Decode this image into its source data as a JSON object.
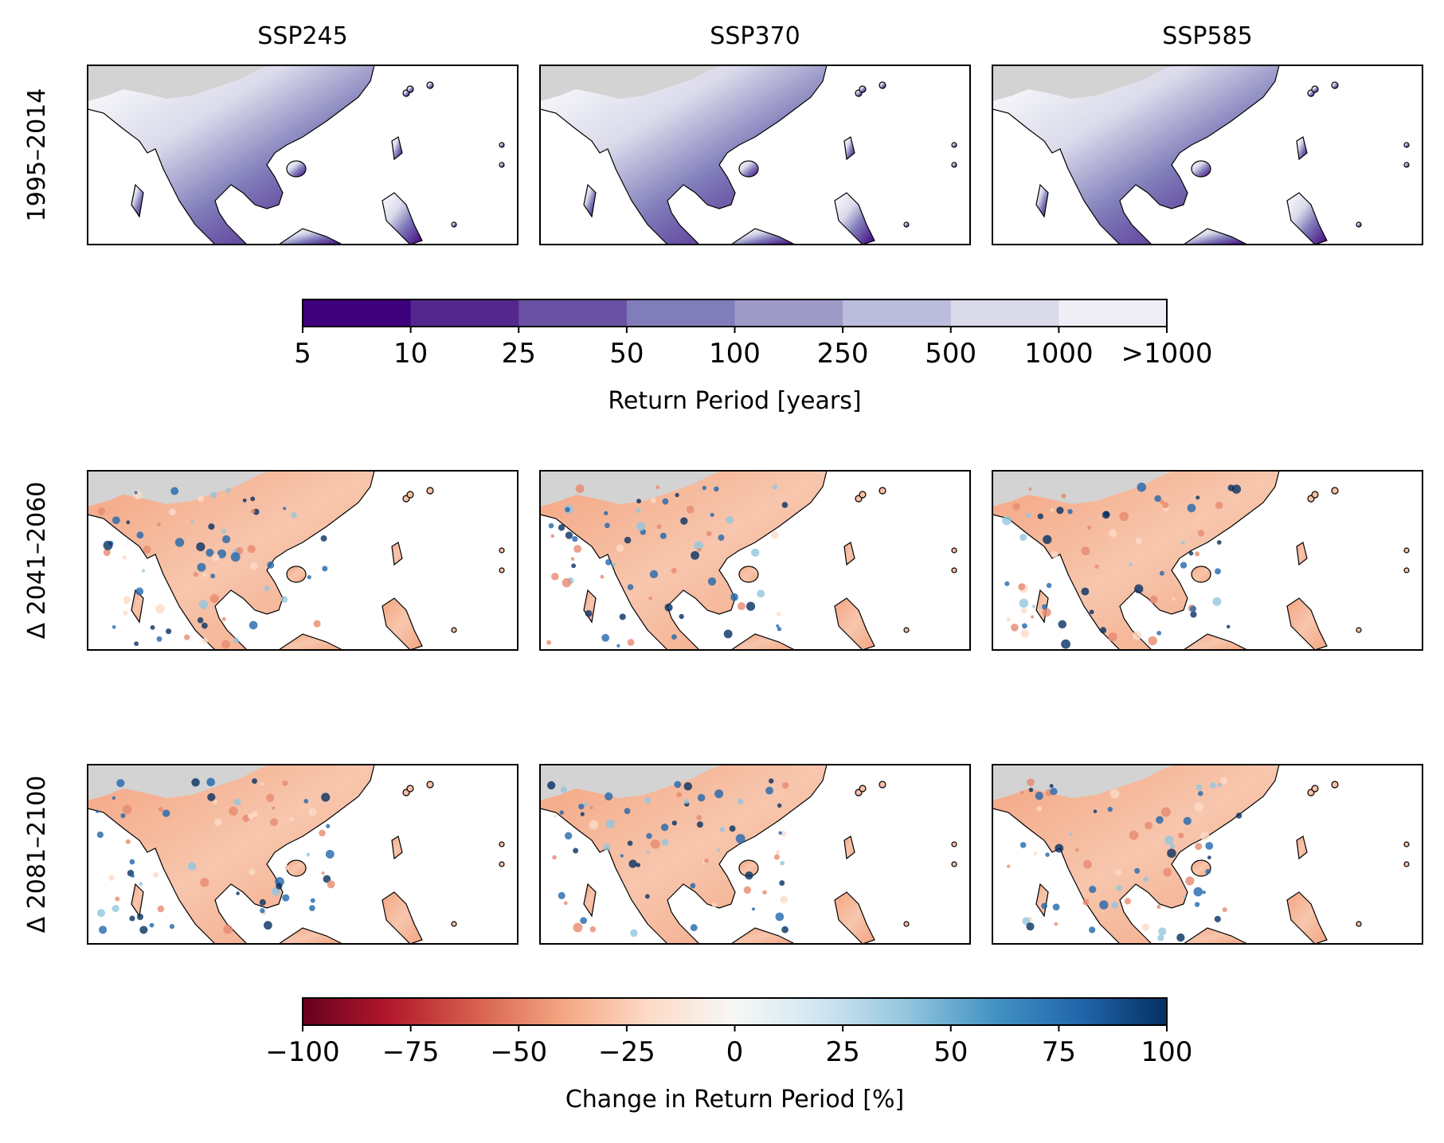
{
  "columns": [
    "SSP245",
    "SSP370",
    "SSP585"
  ],
  "rows": [
    "1995–2014",
    "Δ 2041–2060",
    "Δ 2081–2100"
  ],
  "return_period_colorbar": {
    "label": "Return Period [years]",
    "ticks": [
      "5",
      "10",
      "25",
      "50",
      "100",
      "250",
      "500",
      "1000",
      ">1000"
    ],
    "colors": [
      "#3f007d",
      "#54278f",
      "#6a51a3",
      "#807dba",
      "#9e9ac8",
      "#bcbddc",
      "#dadaeb",
      "#efedf5"
    ]
  },
  "change_colorbar": {
    "label": "Change in Return Period [%]",
    "ticks": [
      "−100",
      "−75",
      "−50",
      "−25",
      "0",
      "25",
      "50",
      "75",
      "100"
    ],
    "colors": [
      "#67001f",
      "#b2182b",
      "#d6604d",
      "#f4a582",
      "#fddbc7",
      "#f7f7f7",
      "#d1e5f0",
      "#92c5de",
      "#4393c3",
      "#2166ac",
      "#053061"
    ]
  }
}
